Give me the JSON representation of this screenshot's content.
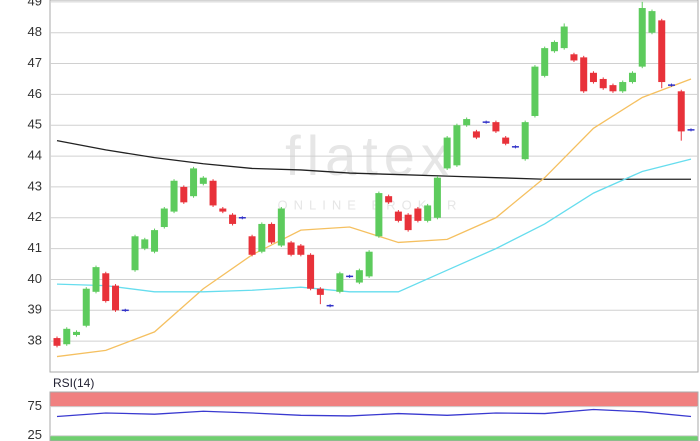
{
  "chart_data": [
    {
      "type": "candlestick",
      "watermark": {
        "title": "flatex",
        "subtitle": "ONLINE BROKER"
      },
      "open": [
        38.1,
        37.9,
        38.2,
        38.5,
        39.6,
        40.2,
        39.8,
        39.0,
        40.3,
        41.0,
        40.9,
        41.7,
        42.2,
        43.0,
        42.7,
        43.1,
        43.2,
        42.3,
        42.1,
        42.0,
        41.4,
        40.9,
        41.8,
        41.1,
        41.2,
        41.1,
        40.8,
        39.7,
        39.15,
        39.6,
        40.1,
        39.9,
        40.1,
        41.4,
        42.7,
        42.2,
        42.1,
        42.3,
        41.9,
        42.0,
        43.6,
        43.7,
        45.0,
        44.8,
        45.1,
        45.1,
        44.6,
        44.3,
        43.9,
        45.3,
        46.6,
        47.4,
        47.5,
        47.3,
        47.2,
        46.7,
        46.5,
        46.3,
        46.1,
        46.4,
        46.9,
        48.0,
        48.4,
        46.3,
        46.1,
        44.85
      ],
      "high": [
        38.15,
        38.45,
        38.35,
        39.75,
        40.45,
        40.25,
        39.85,
        39.05,
        41.45,
        41.35,
        41.65,
        42.35,
        43.25,
        43.05,
        43.65,
        43.35,
        43.25,
        42.35,
        42.15,
        42.05,
        41.45,
        41.85,
        41.85,
        42.35,
        41.25,
        41.15,
        40.85,
        39.75,
        39.2,
        40.25,
        40.15,
        40.35,
        40.95,
        42.85,
        42.75,
        42.25,
        42.15,
        42.35,
        42.45,
        43.35,
        44.65,
        45.05,
        45.25,
        44.85,
        45.15,
        45.15,
        44.65,
        44.35,
        45.15,
        46.95,
        47.55,
        47.75,
        48.3,
        47.35,
        47.25,
        46.75,
        46.55,
        46.35,
        46.45,
        46.75,
        49.0,
        48.75,
        48.45,
        46.35,
        46.15,
        44.9
      ],
      "low": [
        37.8,
        37.85,
        38.15,
        38.45,
        39.55,
        39.25,
        38.95,
        38.95,
        40.25,
        40.95,
        40.85,
        41.65,
        42.15,
        42.45,
        42.65,
        43.05,
        42.35,
        42.15,
        41.75,
        41.95,
        40.75,
        40.85,
        41.15,
        41.05,
        40.75,
        40.75,
        39.65,
        39.2,
        39.1,
        39.55,
        40.05,
        39.85,
        40.05,
        41.35,
        42.45,
        41.85,
        41.55,
        41.85,
        41.85,
        41.95,
        43.55,
        43.65,
        44.95,
        44.55,
        45.05,
        44.75,
        44.35,
        44.25,
        43.85,
        45.25,
        46.55,
        47.35,
        47.45,
        47.05,
        46.05,
        46.35,
        46.15,
        46.05,
        46.05,
        46.35,
        46.85,
        47.95,
        46.2,
        46.25,
        44.5,
        44.8
      ],
      "close": [
        37.85,
        38.4,
        38.3,
        39.7,
        40.4,
        39.3,
        39.0,
        39.0,
        41.4,
        41.3,
        41.6,
        42.3,
        43.2,
        42.5,
        43.6,
        43.3,
        42.4,
        42.2,
        41.8,
        42.0,
        40.8,
        41.8,
        41.2,
        42.3,
        40.8,
        40.8,
        39.7,
        39.5,
        39.15,
        40.2,
        40.1,
        40.3,
        40.9,
        42.8,
        42.5,
        41.9,
        41.6,
        41.9,
        42.4,
        43.3,
        44.6,
        45.0,
        45.2,
        44.6,
        45.1,
        44.8,
        44.4,
        44.3,
        45.1,
        46.9,
        47.5,
        47.7,
        48.2,
        47.1,
        46.1,
        46.4,
        46.2,
        46.1,
        46.4,
        46.7,
        48.8,
        48.7,
        46.4,
        46.3,
        44.8,
        44.85
      ],
      "colors": {
        "up": "#5dcb5d",
        "down": "#e8323a",
        "flat": "#3333c8"
      },
      "lines": [
        {
          "color": "#222222",
          "x": [
            0,
            5,
            10,
            15,
            20,
            25,
            30,
            35,
            40,
            45,
            50,
            55,
            60,
            65
          ],
          "values": [
            44.5,
            44.2,
            43.95,
            43.75,
            43.6,
            43.55,
            43.45,
            43.4,
            43.35,
            43.3,
            43.25,
            43.25,
            43.25,
            43.25
          ]
        },
        {
          "color": "#f5c060",
          "x": [
            0,
            5,
            10,
            15,
            20,
            25,
            30,
            35,
            40,
            45,
            50,
            55,
            60,
            65
          ],
          "values": [
            37.5,
            37.7,
            38.3,
            39.7,
            40.8,
            41.6,
            41.7,
            41.2,
            41.3,
            42.0,
            43.3,
            44.9,
            45.9,
            46.5
          ]
        },
        {
          "color": "#66ddee",
          "x": [
            0,
            5,
            10,
            15,
            20,
            25,
            30,
            35,
            40,
            45,
            50,
            55,
            60,
            65
          ],
          "values": [
            39.85,
            39.8,
            39.6,
            39.6,
            39.65,
            39.75,
            39.6,
            39.6,
            40.3,
            41.0,
            41.8,
            42.8,
            43.5,
            43.9
          ]
        }
      ],
      "ylim": [
        37,
        49.06
      ],
      "yticks": [
        38,
        39,
        40,
        41,
        42,
        43,
        44,
        45,
        46,
        47,
        48,
        49
      ],
      "grid": true
    },
    {
      "type": "line",
      "title": "RSI(14)",
      "x": [
        0,
        5,
        10,
        15,
        20,
        25,
        30,
        35,
        40,
        45,
        50,
        55,
        60,
        65
      ],
      "values": [
        58,
        64,
        62,
        67,
        64,
        60,
        59,
        63,
        60,
        64,
        63,
        70,
        66,
        58
      ],
      "color": "#3a3ad0",
      "zone_colors": [
        "#6fcf6f",
        "#f08080"
      ],
      "ylim": [
        16,
        100
      ],
      "yticks": [
        25,
        75
      ],
      "grid": true
    }
  ]
}
